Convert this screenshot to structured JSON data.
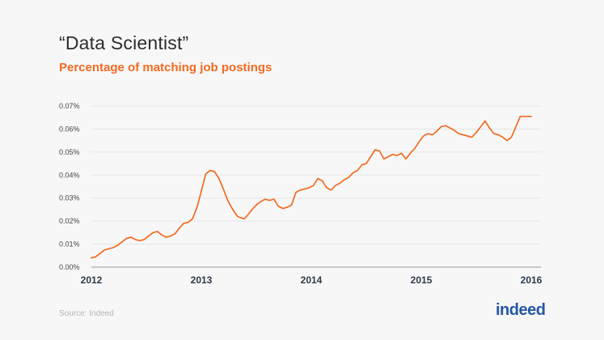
{
  "header": {
    "title": "“Data Scientist”",
    "subtitle": "Percentage of matching job postings"
  },
  "footer": {
    "source": "Source: Indeed",
    "logo_text": "indeed"
  },
  "colors": {
    "line": "#f26b21",
    "grid": "#e2e2e2",
    "axis": "#9a9a9a",
    "brand": "#2557a7"
  },
  "chart_data": {
    "type": "line",
    "title": "“Data Scientist”",
    "subtitle": "Percentage of matching job postings",
    "xlabel": "",
    "ylabel": "",
    "xlim": [
      2012,
      2016
    ],
    "ylim": [
      0,
      0.07
    ],
    "y_ticks": [
      0,
      0.01,
      0.02,
      0.03,
      0.04,
      0.05,
      0.06,
      0.07
    ],
    "y_tick_labels": [
      "0.00%",
      "0.01%",
      "0.02%",
      "0.03%",
      "0.04%",
      "0.05%",
      "0.06%",
      "0.07%"
    ],
    "x_ticks": [
      2012,
      2013,
      2014,
      2015,
      2016
    ],
    "x_tick_labels": [
      "2012",
      "2013",
      "2014",
      "2015",
      "2016"
    ],
    "grid": true,
    "series": [
      {
        "color": "#f26b21",
        "x": [
          2012.0,
          2012.04,
          2012.08,
          2012.12,
          2012.16,
          2012.2,
          2012.24,
          2012.28,
          2012.32,
          2012.36,
          2012.4,
          2012.44,
          2012.48,
          2012.52,
          2012.56,
          2012.6,
          2012.64,
          2012.68,
          2012.72,
          2012.76,
          2012.8,
          2012.84,
          2012.88,
          2012.92,
          2012.96,
          2013.0,
          2013.04,
          2013.08,
          2013.12,
          2013.16,
          2013.2,
          2013.24,
          2013.28,
          2013.3,
          2013.33,
          2013.36,
          2013.39,
          2013.42,
          2013.46,
          2013.5,
          2013.54,
          2013.58,
          2013.62,
          2013.66,
          2013.7,
          2013.74,
          2013.78,
          2013.82,
          2013.86,
          2013.9,
          2013.94,
          2013.98,
          2014.02,
          2014.06,
          2014.1,
          2014.14,
          2014.18,
          2014.22,
          2014.26,
          2014.3,
          2014.34,
          2014.38,
          2014.42,
          2014.46,
          2014.5,
          2014.54,
          2014.58,
          2014.62,
          2014.66,
          2014.7,
          2014.74,
          2014.78,
          2014.82,
          2014.86,
          2014.9,
          2014.94,
          2014.98,
          2015.02,
          2015.06,
          2015.1,
          2015.14,
          2015.18,
          2015.22,
          2015.26,
          2015.3,
          2015.34,
          2015.38,
          2015.42,
          2015.46,
          2015.5,
          2015.54,
          2015.58,
          2015.62,
          2015.66,
          2015.7,
          2015.74,
          2015.78,
          2015.82,
          2015.86,
          2015.9,
          2015.93,
          2015.96,
          2016.0
        ],
        "values": [
          0.004,
          0.0045,
          0.006,
          0.0075,
          0.008,
          0.0085,
          0.0095,
          0.011,
          0.0125,
          0.013,
          0.012,
          0.0115,
          0.012,
          0.0135,
          0.015,
          0.0155,
          0.014,
          0.013,
          0.0135,
          0.0145,
          0.017,
          0.019,
          0.0195,
          0.021,
          0.026,
          0.033,
          0.0405,
          0.042,
          0.0415,
          0.0385,
          0.034,
          0.029,
          0.0255,
          0.024,
          0.022,
          0.0215,
          0.021,
          0.0225,
          0.025,
          0.027,
          0.0285,
          0.0295,
          0.029,
          0.0295,
          0.0265,
          0.0255,
          0.026,
          0.027,
          0.0325,
          0.0335,
          0.034,
          0.0345,
          0.0355,
          0.0385,
          0.0375,
          0.0345,
          0.0335,
          0.0355,
          0.0365,
          0.038,
          0.039,
          0.041,
          0.042,
          0.0445,
          0.045,
          0.048,
          0.051,
          0.0505,
          0.047,
          0.048,
          0.049,
          0.0485,
          0.0495,
          0.047,
          0.0495,
          0.0515,
          0.0545,
          0.057,
          0.058,
          0.0575,
          0.059,
          0.061,
          0.0615,
          0.0605,
          0.0595,
          0.058,
          0.0575,
          0.057,
          0.0565,
          0.0585,
          0.061,
          0.0635,
          0.0605,
          0.058,
          0.0575,
          0.0565,
          0.055,
          0.0565,
          0.061,
          0.0655,
          0.0655,
          0.0655,
          0.0655
        ]
      }
    ]
  }
}
